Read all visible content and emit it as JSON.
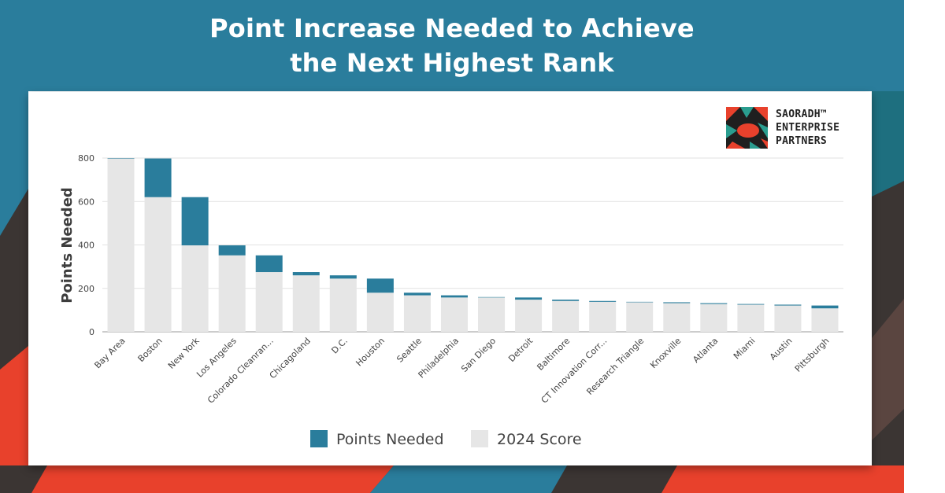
{
  "banner": {
    "title_line1": "Point Increase Needed to Achieve",
    "title_line2": "the Next Highest Rank"
  },
  "logo": {
    "line1": "SAORADH™",
    "line2": "ENTERPRISE",
    "line3": "PARTNERS"
  },
  "colors": {
    "banner": "#2a7d9c",
    "points_needed": "#2a7d9c",
    "score_2024": "#e6e6e6",
    "background_dark": "#3b3533",
    "background_red": "#e8412c",
    "background_teal": "#1e6f7f"
  },
  "chart_data": {
    "type": "bar",
    "stacked": true,
    "title": "",
    "xlabel": "",
    "ylabel": "Points Needed",
    "ylim": [
      0,
      800
    ],
    "yticks": [
      0,
      200,
      400,
      600,
      800
    ],
    "grid": true,
    "legend_position": "bottom",
    "categories": [
      "Bay Area",
      "Boston",
      "New York",
      "Los Angeles",
      "Colorado Cleanran...",
      "Chicagoland",
      "D.C.",
      "Houston",
      "Seattle",
      "Philadelphia",
      "San Diego",
      "Detroit",
      "Baltimore",
      "CT Innovation Corr...",
      "Research Triangle",
      "Knoxville",
      "Atlanta",
      "Miami",
      "Austin",
      "Pittsburgh"
    ],
    "series": [
      {
        "name": "2024 Score",
        "values": [
          798,
          620,
          398,
          352,
          275,
          260,
          245,
          180,
          168,
          158,
          158,
          148,
          142,
          138,
          136,
          132,
          128,
          125,
          121,
          108
        ]
      },
      {
        "name": "Points Needed",
        "values": [
          2,
          178,
          222,
          46,
          77,
          15,
          15,
          65,
          12,
          10,
          2,
          10,
          6,
          4,
          2,
          4,
          4,
          3,
          4,
          13
        ]
      }
    ]
  }
}
